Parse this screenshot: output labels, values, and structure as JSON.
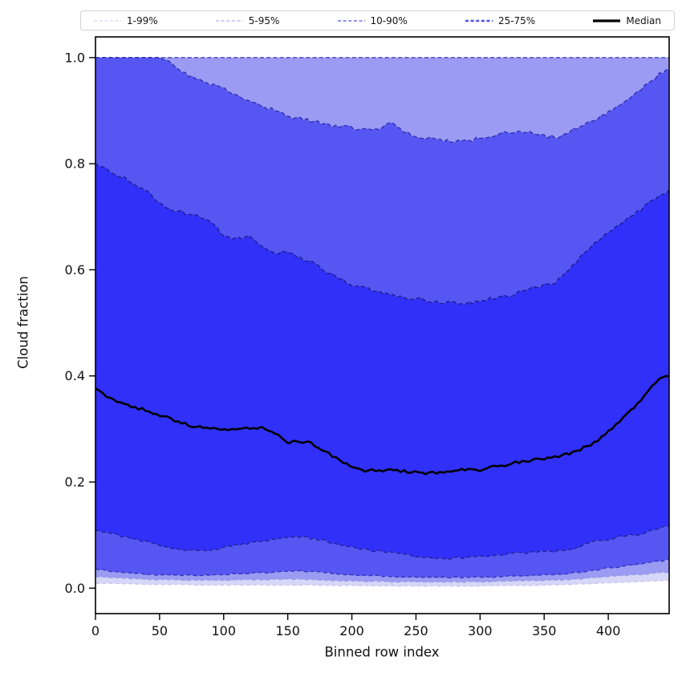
{
  "figure": {
    "background": "#ffffff"
  },
  "legend": {
    "items": [
      {
        "label": "1-99%",
        "color": "#dcdcf8",
        "style": "dashed",
        "weight": 1.4
      },
      {
        "label": "5-95%",
        "color": "#bbbbf4",
        "style": "dashed",
        "weight": 1.4
      },
      {
        "label": "10-90%",
        "color": "#8484ee",
        "style": "dashed",
        "weight": 1.7
      },
      {
        "label": "25-75%",
        "color": "#4f4fe6",
        "style": "dashed",
        "weight": 2.4
      },
      {
        "label": "Median",
        "color": "#000000",
        "style": "solid",
        "weight": 3.2
      }
    ]
  },
  "chart_data": {
    "type": "area",
    "title": "",
    "xlabel": "Binned row index",
    "ylabel": "Cloud fraction",
    "xlim": [
      0,
      447.5
    ],
    "ylim": [
      -0.048,
      1.039
    ],
    "x_ticks": [
      0,
      50,
      100,
      150,
      200,
      250,
      300,
      350,
      400
    ],
    "x_tick_labels": [
      "0",
      "50",
      "100",
      "150",
      "200",
      "250",
      "300",
      "350",
      "400"
    ],
    "y_ticks": [
      0.0,
      0.2,
      0.4,
      0.6,
      0.8,
      1.0
    ],
    "y_tick_labels": [
      "0.0",
      "0.2",
      "0.4",
      "0.6",
      "0.8",
      "1.0"
    ],
    "legend_position": "top-outside",
    "grid": false,
    "x": [
      0,
      10,
      20,
      30,
      40,
      50,
      60,
      70,
      80,
      90,
      100,
      110,
      120,
      130,
      140,
      150,
      160,
      170,
      180,
      190,
      200,
      210,
      220,
      230,
      240,
      250,
      260,
      270,
      280,
      290,
      300,
      310,
      320,
      330,
      340,
      350,
      360,
      370,
      380,
      390,
      400,
      410,
      420,
      430,
      440,
      447.5
    ],
    "percentiles": {
      "p1": [
        0.009,
        0.009,
        0.008,
        0.008,
        0.007,
        0.007,
        0.007,
        0.007,
        0.006,
        0.006,
        0.006,
        0.006,
        0.006,
        0.006,
        0.006,
        0.006,
        0.006,
        0.006,
        0.005,
        0.005,
        0.005,
        0.005,
        0.004,
        0.004,
        0.004,
        0.004,
        0.004,
        0.004,
        0.004,
        0.004,
        0.004,
        0.005,
        0.005,
        0.005,
        0.005,
        0.006,
        0.006,
        0.007,
        0.008,
        0.009,
        0.01,
        0.011,
        0.012,
        0.013,
        0.014,
        0.015
      ],
      "p5": [
        0.022,
        0.02,
        0.019,
        0.018,
        0.017,
        0.016,
        0.016,
        0.015,
        0.015,
        0.015,
        0.015,
        0.016,
        0.016,
        0.016,
        0.017,
        0.017,
        0.017,
        0.016,
        0.015,
        0.014,
        0.014,
        0.013,
        0.013,
        0.012,
        0.012,
        0.012,
        0.012,
        0.012,
        0.012,
        0.012,
        0.012,
        0.013,
        0.013,
        0.014,
        0.014,
        0.015,
        0.015,
        0.016,
        0.018,
        0.02,
        0.022,
        0.024,
        0.025,
        0.027,
        0.029,
        0.03
      ],
      "p10": [
        0.036,
        0.033,
        0.03,
        0.028,
        0.026,
        0.025,
        0.024,
        0.024,
        0.024,
        0.024,
        0.026,
        0.027,
        0.028,
        0.029,
        0.03,
        0.032,
        0.032,
        0.031,
        0.029,
        0.027,
        0.025,
        0.024,
        0.023,
        0.022,
        0.021,
        0.021,
        0.02,
        0.02,
        0.02,
        0.02,
        0.021,
        0.021,
        0.022,
        0.023,
        0.024,
        0.025,
        0.026,
        0.028,
        0.031,
        0.034,
        0.038,
        0.041,
        0.044,
        0.047,
        0.051,
        0.054
      ],
      "p25": [
        0.11,
        0.105,
        0.098,
        0.092,
        0.087,
        0.08,
        0.076,
        0.073,
        0.071,
        0.07,
        0.077,
        0.082,
        0.084,
        0.088,
        0.092,
        0.097,
        0.096,
        0.094,
        0.088,
        0.083,
        0.077,
        0.073,
        0.07,
        0.067,
        0.063,
        0.06,
        0.058,
        0.057,
        0.057,
        0.058,
        0.06,
        0.062,
        0.064,
        0.066,
        0.068,
        0.07,
        0.07,
        0.072,
        0.08,
        0.088,
        0.093,
        0.098,
        0.1,
        0.105,
        0.112,
        0.118
      ],
      "p75": [
        0.8,
        0.789,
        0.776,
        0.763,
        0.748,
        0.727,
        0.713,
        0.707,
        0.701,
        0.689,
        0.666,
        0.657,
        0.662,
        0.641,
        0.628,
        0.636,
        0.621,
        0.612,
        0.596,
        0.585,
        0.571,
        0.565,
        0.559,
        0.552,
        0.548,
        0.545,
        0.542,
        0.538,
        0.537,
        0.537,
        0.543,
        0.547,
        0.549,
        0.557,
        0.565,
        0.572,
        0.578,
        0.6,
        0.627,
        0.65,
        0.668,
        0.686,
        0.705,
        0.722,
        0.737,
        0.752
      ],
      "p90": [
        1.0,
        1.0,
        1.0,
        1.0,
        1.0,
        1.0,
        0.99,
        0.97,
        0.958,
        0.95,
        0.943,
        0.93,
        0.92,
        0.91,
        0.9,
        0.89,
        0.885,
        0.88,
        0.873,
        0.87,
        0.868,
        0.863,
        0.866,
        0.877,
        0.862,
        0.85,
        0.846,
        0.845,
        0.843,
        0.842,
        0.848,
        0.852,
        0.858,
        0.862,
        0.86,
        0.852,
        0.85,
        0.862,
        0.872,
        0.885,
        0.897,
        0.91,
        0.928,
        0.95,
        0.97,
        0.978
      ],
      "p95": [
        1.0,
        1.0,
        1.0,
        1.0,
        1.0,
        1.0,
        1.0,
        1.0,
        1.0,
        1.0,
        1.0,
        1.0,
        1.0,
        1.0,
        1.0,
        1.0,
        1.0,
        1.0,
        1.0,
        1.0,
        1.0,
        1.0,
        1.0,
        1.0,
        1.0,
        1.0,
        1.0,
        1.0,
        1.0,
        1.0,
        1.0,
        1.0,
        1.0,
        1.0,
        1.0,
        1.0,
        1.0,
        1.0,
        1.0,
        1.0,
        1.0,
        1.0,
        1.0,
        1.0,
        1.0,
        1.0
      ],
      "p99": [
        1.0,
        1.0,
        1.0,
        1.0,
        1.0,
        1.0,
        1.0,
        1.0,
        1.0,
        1.0,
        1.0,
        1.0,
        1.0,
        1.0,
        1.0,
        1.0,
        1.0,
        1.0,
        1.0,
        1.0,
        1.0,
        1.0,
        1.0,
        1.0,
        1.0,
        1.0,
        1.0,
        1.0,
        1.0,
        1.0,
        1.0,
        1.0,
        1.0,
        1.0,
        1.0,
        1.0,
        1.0,
        1.0,
        1.0,
        1.0,
        1.0,
        1.0,
        1.0,
        1.0,
        1.0,
        1.0
      ]
    },
    "median": [
      0.378,
      0.36,
      0.35,
      0.342,
      0.334,
      0.326,
      0.318,
      0.31,
      0.303,
      0.302,
      0.3,
      0.297,
      0.301,
      0.304,
      0.291,
      0.274,
      0.277,
      0.271,
      0.257,
      0.24,
      0.228,
      0.222,
      0.221,
      0.224,
      0.22,
      0.218,
      0.216,
      0.218,
      0.222,
      0.225,
      0.222,
      0.228,
      0.233,
      0.238,
      0.241,
      0.245,
      0.248,
      0.254,
      0.264,
      0.276,
      0.296,
      0.318,
      0.341,
      0.368,
      0.394,
      0.4
    ],
    "bands": [
      {
        "label": "1-99%",
        "lo": "p1",
        "hi": "p99",
        "fill": "#d6d6f8",
        "edge": "#c8c8ef",
        "edge_hi": "#c8c8ef"
      },
      {
        "label": "5-95%",
        "lo": "p5",
        "hi": "p95",
        "fill": "#9b9bf3",
        "edge": "#9898e6",
        "edge_hi": "#4646c0"
      },
      {
        "label": "10-90%",
        "lo": "p10",
        "hi": "p90",
        "fill": "#5656f2",
        "edge": "#3333bb",
        "edge_hi": "#2b2bae"
      },
      {
        "label": "25-75%",
        "lo": "p25",
        "hi": "p75",
        "fill": "#3030f8",
        "edge": "#222290",
        "edge_hi": "#1b1b86"
      }
    ],
    "median_style": {
      "label": "Median",
      "color": "#000000",
      "width": 2.6
    }
  }
}
